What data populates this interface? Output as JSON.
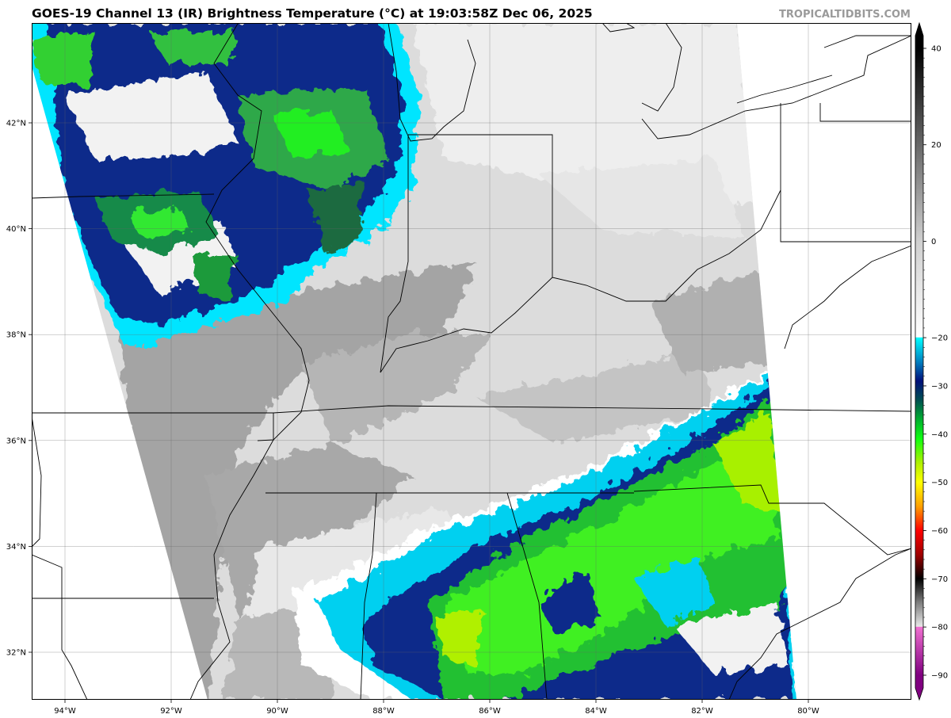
{
  "title": "GOES-19 Channel 13 (IR) Brightness Temperature (°C) at 19:03:58Z Dec 06, 2025",
  "watermark": "TROPICALTIDBITS.COM",
  "map": {
    "longitude_labels": [
      {
        "lon": -94,
        "label": "94°W"
      },
      {
        "lon": -92,
        "label": "92°W"
      },
      {
        "lon": -90,
        "label": "90°W"
      },
      {
        "lon": -88,
        "label": "88°W"
      },
      {
        "lon": -86,
        "label": "86°W"
      },
      {
        "lon": -84,
        "label": "84°W"
      },
      {
        "lon": -82,
        "label": "82°W"
      },
      {
        "lon": -80,
        "label": "80°W"
      }
    ],
    "latitude_labels": [
      {
        "lat": 42,
        "label": "42°N"
      },
      {
        "lat": 40,
        "label": "40°N"
      },
      {
        "lat": 38,
        "label": "38°N"
      },
      {
        "lat": 36,
        "label": "36°N"
      },
      {
        "lat": 34,
        "label": "34°N"
      },
      {
        "lat": 32,
        "label": "32°N"
      }
    ]
  },
  "colorbar": {
    "unit": "°C",
    "range": [
      -90,
      40
    ],
    "ticks": [
      {
        "value": 40,
        "label": "40"
      },
      {
        "value": 20,
        "label": "20"
      },
      {
        "value": 0,
        "label": "0"
      },
      {
        "value": -20,
        "label": "−20"
      },
      {
        "value": -30,
        "label": "−30"
      },
      {
        "value": -40,
        "label": "−40"
      },
      {
        "value": -50,
        "label": "−50"
      },
      {
        "value": -60,
        "label": "−60"
      },
      {
        "value": -70,
        "label": "−70"
      },
      {
        "value": -80,
        "label": "−80"
      },
      {
        "value": -90,
        "label": "−90"
      }
    ],
    "stops": [
      {
        "value": 40,
        "color": "#000000"
      },
      {
        "value": 0,
        "color": "#cfcfcf"
      },
      {
        "value": -19.9,
        "color": "#ffffff"
      },
      {
        "value": -20,
        "color": "#00ffff"
      },
      {
        "value": -25,
        "color": "#0080c0"
      },
      {
        "value": -29,
        "color": "#00107a"
      },
      {
        "value": -33,
        "color": "#005050"
      },
      {
        "value": -37,
        "color": "#00b030"
      },
      {
        "value": -41,
        "color": "#10ff10"
      },
      {
        "value": -46,
        "color": "#b0f000"
      },
      {
        "value": -50,
        "color": "#ffff00"
      },
      {
        "value": -55,
        "color": "#ffa000"
      },
      {
        "value": -60,
        "color": "#ff0000"
      },
      {
        "value": -65,
        "color": "#a00000"
      },
      {
        "value": -70,
        "color": "#000000"
      },
      {
        "value": -75,
        "color": "#808080"
      },
      {
        "value": -79.9,
        "color": "#e8e8e8"
      },
      {
        "value": -80,
        "color": "#f070d0"
      },
      {
        "value": -90,
        "color": "#800080"
      }
    ]
  }
}
